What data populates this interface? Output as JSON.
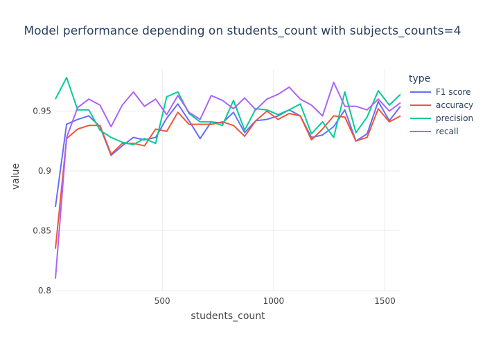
{
  "chart_data": {
    "type": "line",
    "title": "Model performance depending on students_count with subjects_counts=4",
    "xlabel": "students_count",
    "ylabel": "value",
    "xlim": [
      20,
      1570
    ],
    "ylim": [
      0.8,
      0.985
    ],
    "xticks": [
      500,
      1000,
      1500
    ],
    "xtick_labels": [
      "500",
      "1000",
      "1500"
    ],
    "yticks": [
      0.8,
      0.85,
      0.9,
      0.95
    ],
    "ytick_labels": [
      "0.8",
      "0.85",
      "0.9",
      "0.95"
    ],
    "grid": true,
    "legend": {
      "title": "type",
      "placement": "right"
    },
    "x": [
      20,
      70,
      120,
      170,
      220,
      270,
      320,
      370,
      420,
      470,
      520,
      570,
      620,
      670,
      720,
      770,
      820,
      870,
      920,
      970,
      1020,
      1070,
      1120,
      1170,
      1220,
      1270,
      1320,
      1370,
      1420,
      1470,
      1520,
      1570
    ],
    "series": [
      {
        "name": "F1 score",
        "color": "#636efa",
        "values": [
          0.87,
          0.939,
          0.943,
          0.946,
          0.937,
          0.913,
          0.921,
          0.928,
          0.926,
          0.928,
          0.944,
          0.956,
          0.942,
          0.927,
          0.941,
          0.94,
          0.949,
          0.932,
          0.942,
          0.943,
          0.946,
          0.951,
          0.946,
          0.928,
          0.93,
          0.937,
          0.951,
          0.925,
          0.931,
          0.958,
          0.942,
          0.954
        ]
      },
      {
        "name": "accuracy",
        "color": "#ef553b",
        "values": [
          0.835,
          0.927,
          0.935,
          0.938,
          0.938,
          0.914,
          0.923,
          0.923,
          0.921,
          0.935,
          0.933,
          0.949,
          0.939,
          0.939,
          0.939,
          0.941,
          0.938,
          0.929,
          0.942,
          0.95,
          0.943,
          0.948,
          0.946,
          0.926,
          0.935,
          0.946,
          0.945,
          0.925,
          0.928,
          0.952,
          0.941,
          0.946
        ]
      },
      {
        "name": "precision",
        "color": "#00cc96",
        "values": [
          0.96,
          0.978,
          0.951,
          0.951,
          0.934,
          0.928,
          0.924,
          0.922,
          0.927,
          0.923,
          0.962,
          0.966,
          0.948,
          0.941,
          0.941,
          0.938,
          0.959,
          0.934,
          0.952,
          0.951,
          0.947,
          0.951,
          0.956,
          0.931,
          0.941,
          0.928,
          0.966,
          0.932,
          0.945,
          0.967,
          0.955,
          0.964
        ]
      },
      {
        "name": "recall",
        "color": "#ab63fa",
        "values": [
          0.81,
          0.928,
          0.953,
          0.96,
          0.955,
          0.937,
          0.955,
          0.966,
          0.954,
          0.96,
          0.947,
          0.963,
          0.949,
          0.943,
          0.963,
          0.959,
          0.952,
          0.961,
          0.951,
          0.96,
          0.964,
          0.97,
          0.96,
          0.955,
          0.946,
          0.974,
          0.954,
          0.954,
          0.951,
          0.96,
          0.95,
          0.957
        ]
      }
    ]
  }
}
